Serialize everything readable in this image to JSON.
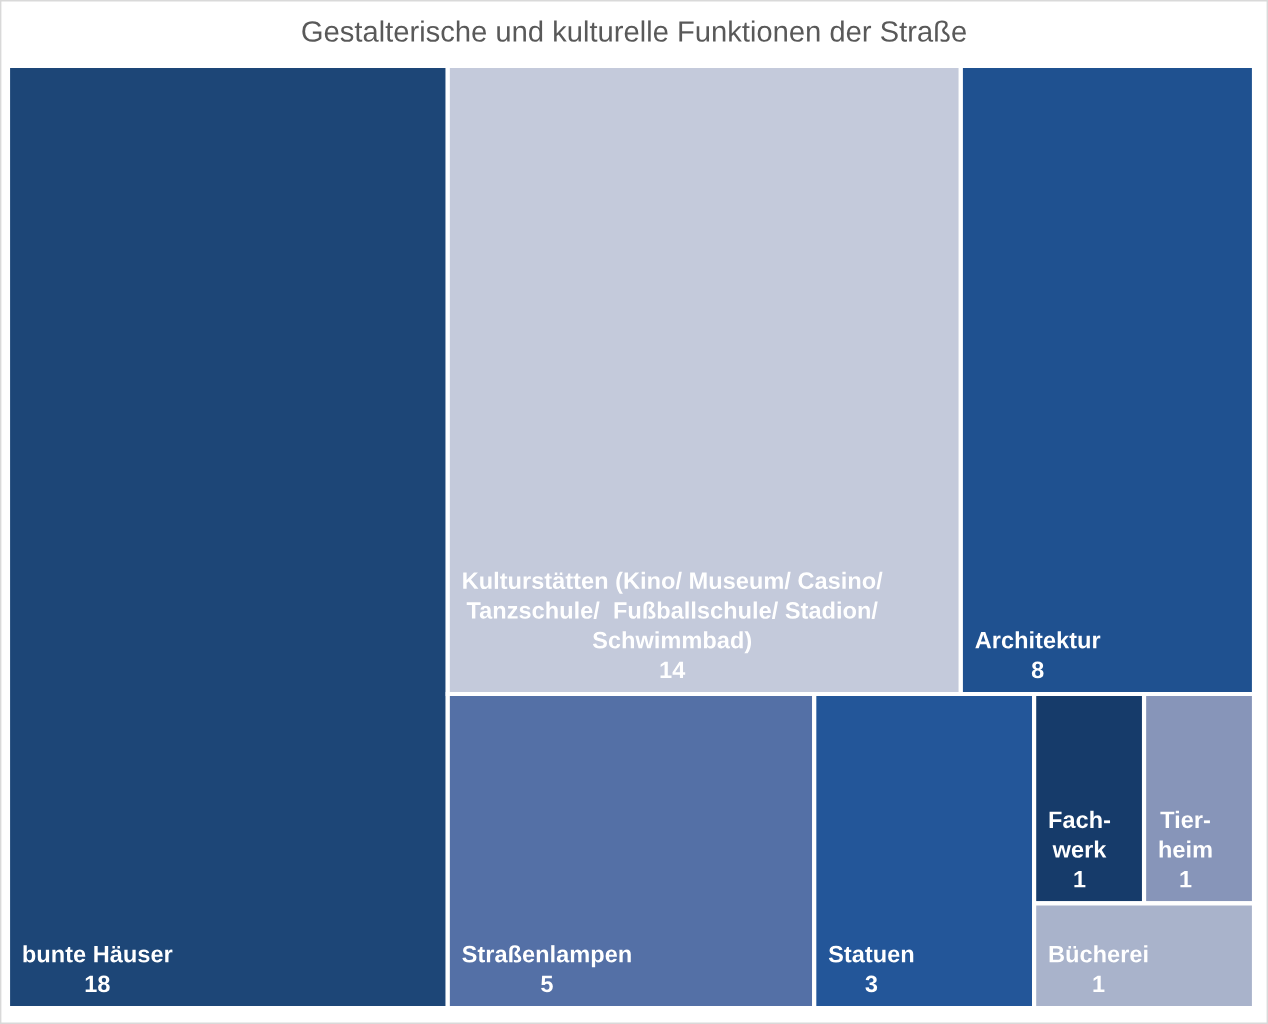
{
  "chart_data": {
    "type": "other",
    "title": "Gestalterische und kulturelle Funktionen der Straße",
    "categories": [
      "bunte Häuser",
      "Kulturstätten (Kino/ Museum/ Casino/\nTanzschule/  Fußballschule/ Stadion/\nSchwimmbad)",
      "Architektur",
      "Straßenlampen",
      "Statuen",
      "Fach-\nwerk",
      "Tier-\nheim",
      "Bücherei"
    ],
    "values": [
      18,
      14,
      8,
      5,
      3,
      1,
      1,
      1
    ],
    "colors": [
      "#1d4677",
      "#c4cadb",
      "#1f5190",
      "#5470a6",
      "#235699",
      "#163b6a",
      "#8795b9",
      "#a9b3cb"
    ],
    "data_labels": true
  }
}
